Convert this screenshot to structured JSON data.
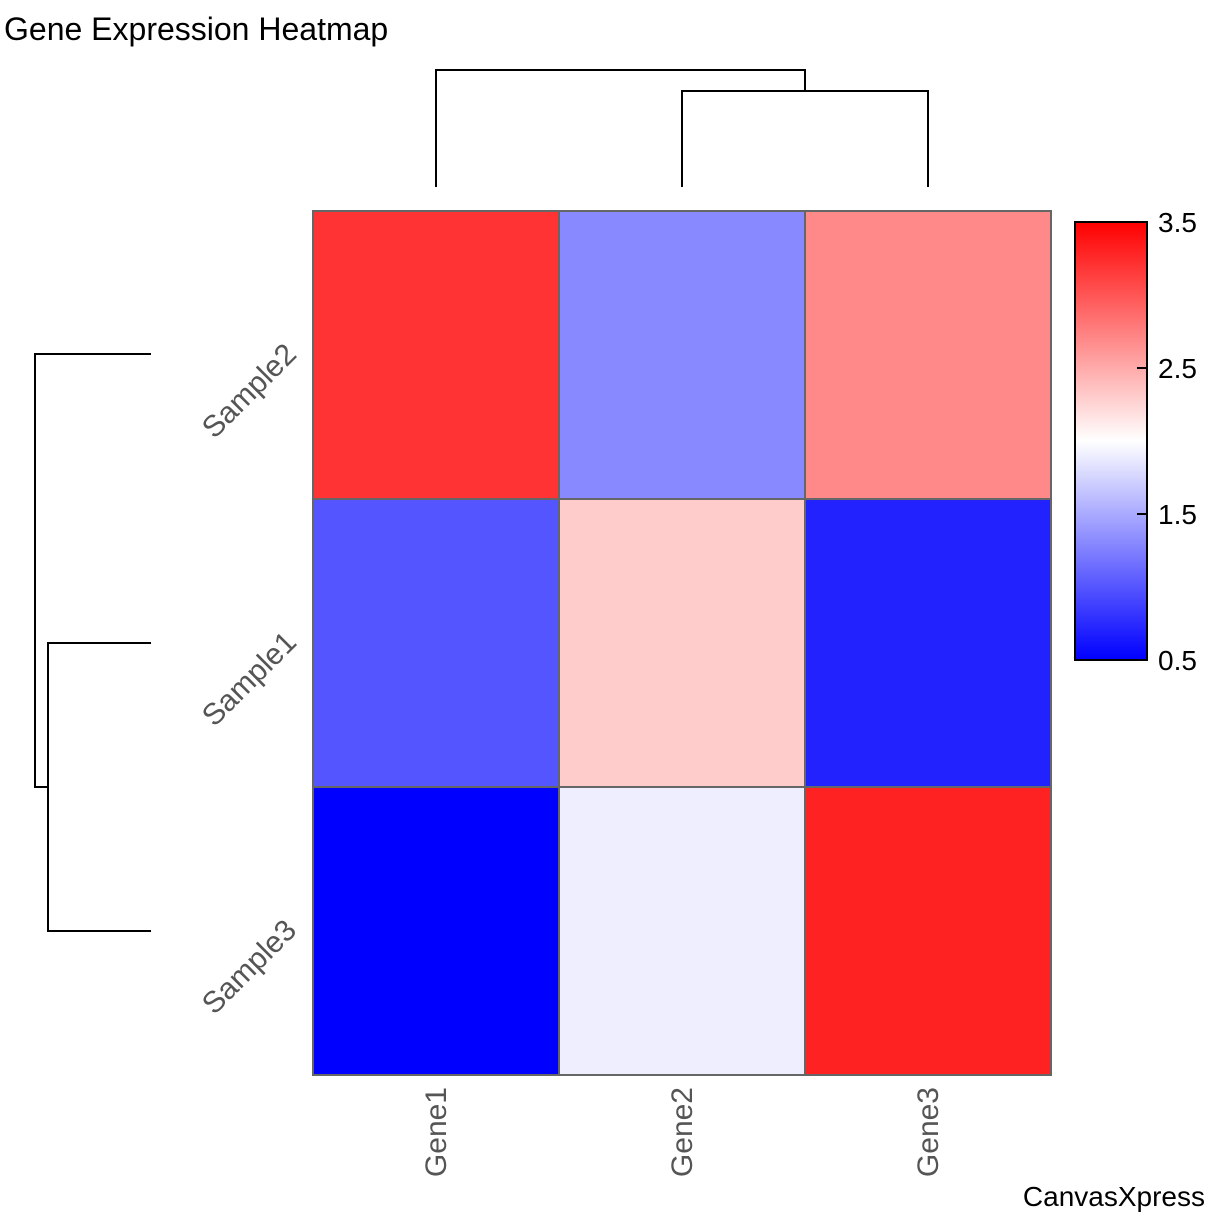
{
  "chart_data": {
    "type": "heatmap",
    "title": "Gene Expression Heatmap",
    "columns": [
      "Gene1",
      "Gene2",
      "Gene3"
    ],
    "rows": [
      "Sample2",
      "Sample1",
      "Sample3"
    ],
    "values": [
      [
        3.2,
        1.3,
        2.7
      ],
      [
        1.0,
        2.3,
        0.7
      ],
      [
        0.5,
        1.9,
        3.3
      ]
    ],
    "color_scale": {
      "min": 0.5,
      "mid": 2.0,
      "max": 3.5,
      "min_color": "#0000ff",
      "mid_color": "#ffffff",
      "max_color": "#ff0000",
      "ticks": [
        "3.5",
        "2.5",
        "1.5",
        "0.5"
      ]
    },
    "column_dendrogram": "(Gene1, (Gene2, Gene3))",
    "row_dendrogram": "(Sample2, (Sample1, Sample3))",
    "legend_position": "right"
  },
  "watermark": "CanvasXpress"
}
